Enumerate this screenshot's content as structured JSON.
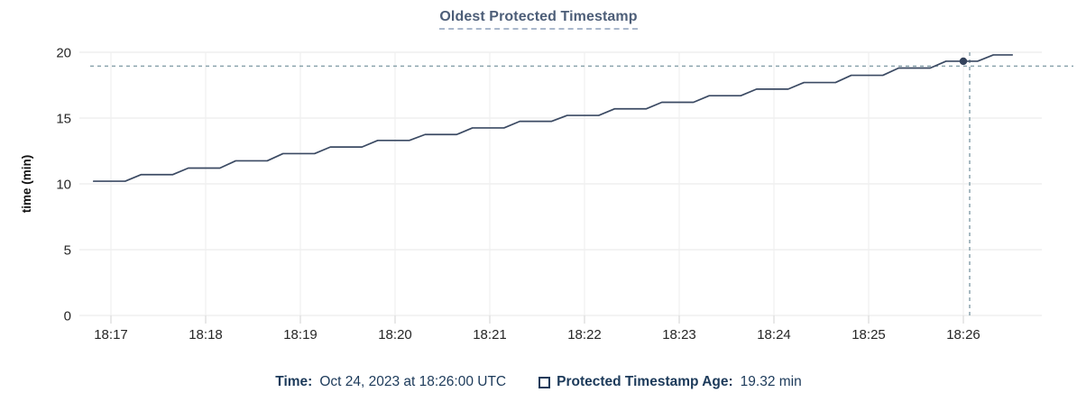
{
  "title": "Oldest Protected Timestamp",
  "chart_data": {
    "type": "line",
    "title": "Oldest Protected Timestamp",
    "xlabel": "",
    "ylabel": "time (min)",
    "ylim": [
      0,
      20
    ],
    "y_ticks": [
      0,
      5,
      10,
      15,
      20
    ],
    "x_unit": "seconds relative to 18:17:00",
    "x_domain_seconds": [
      -20,
      590
    ],
    "x_ticks": [
      {
        "s": 0,
        "label": "18:17"
      },
      {
        "s": 60,
        "label": "18:18"
      },
      {
        "s": 120,
        "label": "18:19"
      },
      {
        "s": 180,
        "label": "18:20"
      },
      {
        "s": 240,
        "label": "18:21"
      },
      {
        "s": 300,
        "label": "18:22"
      },
      {
        "s": 360,
        "label": "18:23"
      },
      {
        "s": 420,
        "label": "18:24"
      },
      {
        "s": 480,
        "label": "18:25"
      },
      {
        "s": 540,
        "label": "18:26"
      }
    ],
    "grid": true,
    "legend_position": "bottom",
    "series": [
      {
        "name": "Protected Timestamp Age",
        "points": [
          [
            -11,
            10.2
          ],
          [
            9,
            10.2
          ],
          [
            19,
            10.7
          ],
          [
            39,
            10.7
          ],
          [
            49,
            11.2
          ],
          [
            69,
            11.2
          ],
          [
            79,
            11.75
          ],
          [
            99,
            11.75
          ],
          [
            109,
            12.3
          ],
          [
            129,
            12.3
          ],
          [
            139,
            12.8
          ],
          [
            159,
            12.8
          ],
          [
            169,
            13.3
          ],
          [
            189,
            13.3
          ],
          [
            199,
            13.75
          ],
          [
            219,
            13.75
          ],
          [
            229,
            14.25
          ],
          [
            249,
            14.25
          ],
          [
            259,
            14.75
          ],
          [
            279,
            14.75
          ],
          [
            289,
            15.2
          ],
          [
            309,
            15.2
          ],
          [
            319,
            15.7
          ],
          [
            339,
            15.7
          ],
          [
            349,
            16.2
          ],
          [
            369,
            16.2
          ],
          [
            379,
            16.7
          ],
          [
            399,
            16.7
          ],
          [
            409,
            17.2
          ],
          [
            429,
            17.2
          ],
          [
            439,
            17.7
          ],
          [
            459,
            17.7
          ],
          [
            469,
            18.25
          ],
          [
            489,
            18.25
          ],
          [
            499,
            18.8
          ],
          [
            519,
            18.8
          ],
          [
            529,
            19.32
          ],
          [
            549,
            19.32
          ],
          [
            559,
            19.8
          ],
          [
            571,
            19.8
          ]
        ]
      }
    ],
    "crosshair": {
      "hover_x_seconds": 544,
      "hover_y_value": 18.95,
      "dot": {
        "x_seconds": 540,
        "value": 19.32
      }
    }
  },
  "footer": {
    "time_label": "Time:",
    "time_value": "Oct 24, 2023 at 18:26:00 UTC",
    "legend_label": "Protected Timestamp Age:",
    "legend_value": "19.32 min"
  },
  "colors": {
    "series_line": "#3b4a63",
    "dot": "#33425c",
    "grid_horizontal": "#ececec",
    "grid_vertical": "#f0f0f0",
    "tick_stub": "#dcdcdc",
    "crosshair": "#8ba4ad",
    "tick_label": "#262626",
    "axis_title": "#111111",
    "chart_title": "#4d5e78",
    "footer_text": "#1c3a5a"
  }
}
